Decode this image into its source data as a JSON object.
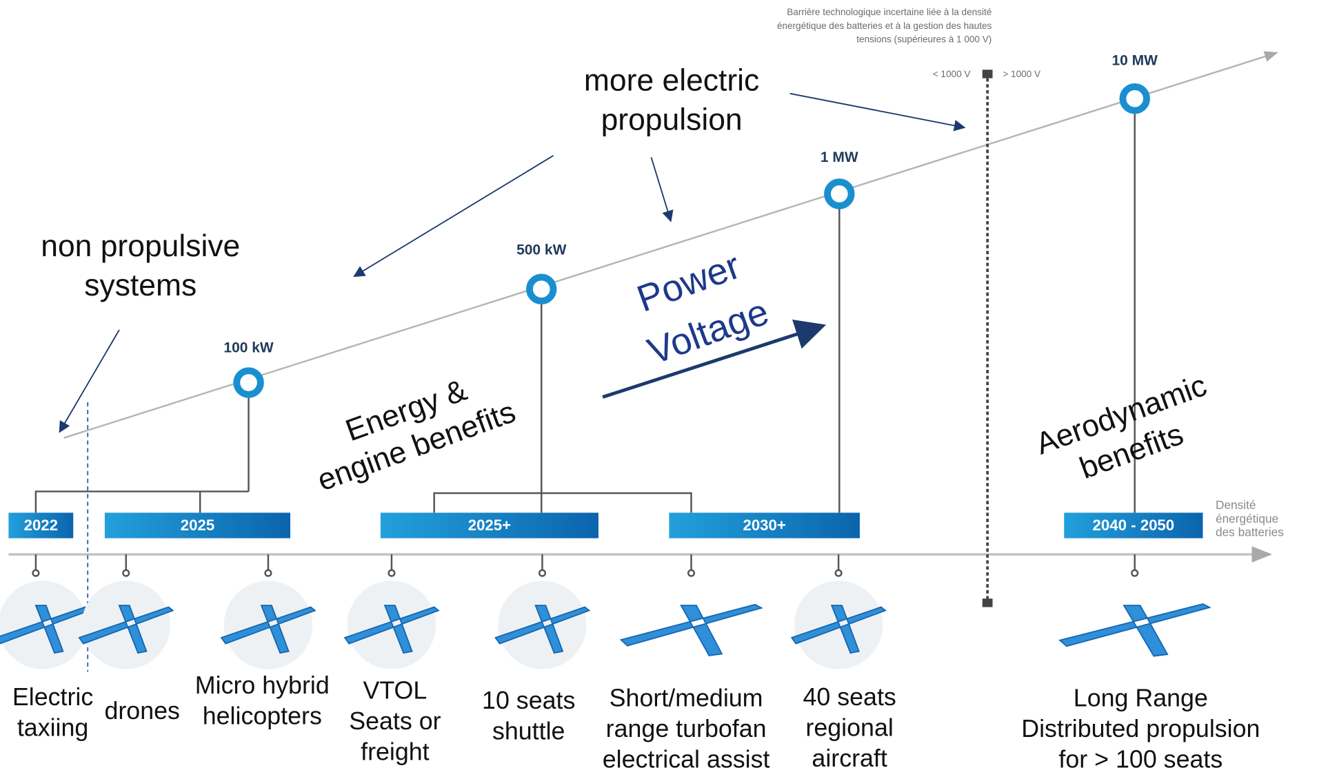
{
  "header_note": [
    "Barrière technologique incertaine liée à la densité",
    "énergétique des batteries et à la gestion des hautes",
    "tensions (supérieures à 1 000 V)"
  ],
  "voltage_barrier": {
    "below": "< 1000 V",
    "above": "> 1000 V"
  },
  "power_levels": [
    "100 kW",
    "500 kW",
    "1 MW",
    "10 MW"
  ],
  "periods": [
    "2022",
    "2025",
    "2025+",
    "2030+",
    "2040 - 2050"
  ],
  "axis_label": [
    "Densité",
    "énergétique",
    "des batteries"
  ],
  "applications": [
    [
      "Electric",
      "taxiing"
    ],
    [
      "drones"
    ],
    [
      "Micro hybrid",
      "helicopters"
    ],
    [
      "VTOL",
      "Seats or",
      "freight"
    ],
    [
      "10 seats",
      "shuttle"
    ],
    [
      "Short/medium",
      "range turbofan",
      "electrical assist"
    ],
    [
      "40 seats",
      "regional",
      "aircraft"
    ],
    [
      "Long Range",
      "Distributed propulsion",
      "for > 100 seats"
    ]
  ],
  "annotations": {
    "more_electric": [
      "more electric",
      "propulsion"
    ],
    "non_propulsive": [
      "non propulsive",
      "systems"
    ],
    "power_voltage": [
      "Power",
      "Voltage"
    ],
    "energy": [
      "Energy &",
      "engine benefits"
    ],
    "aero": [
      "Aerodynamic",
      "benefits"
    ]
  }
}
